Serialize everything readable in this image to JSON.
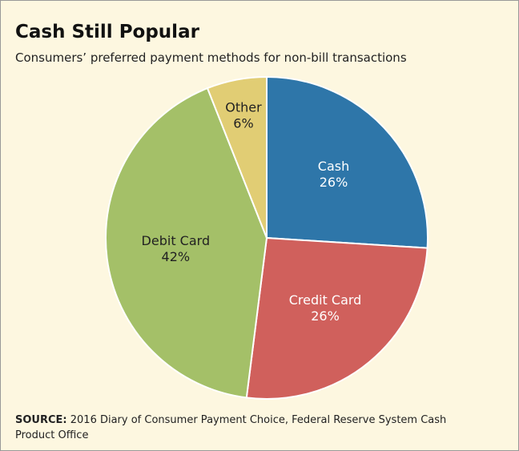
{
  "chart_data": {
    "type": "pie",
    "title": "Cash Still Popular",
    "subtitle": "Consumers’ preferred payment methods for non-bill transactions",
    "categories": [
      "Cash",
      "Credit Card",
      "Debit Card",
      "Other"
    ],
    "values": [
      26,
      26,
      42,
      6
    ],
    "value_labels": [
      "26%",
      "26%",
      "42%",
      "6%"
    ],
    "colors": [
      "#2e76a9",
      "#d0605c",
      "#a4c068",
      "#e1cd74"
    ],
    "source_label": "SOURCE:",
    "source": "2016 Diary of Consumer Payment Choice, Federal Reserve System Cash Product Office"
  }
}
